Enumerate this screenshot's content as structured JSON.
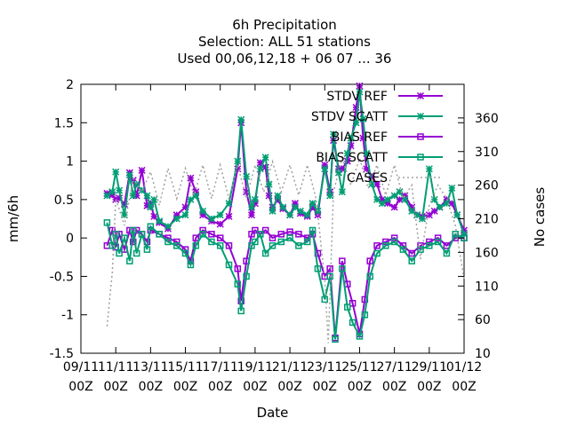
{
  "chart_data": {
    "type": "line",
    "title_lines": [
      "6h Precipitation",
      "Selection: ALL      51 stations",
      "Used  00,06,12,18 + 06 07 ... 36"
    ],
    "xlabel": "Date",
    "ylabel": "mm/6h",
    "y2label": "No cases",
    "x_ticks": [
      {
        "day": 9,
        "label": [
          "09/11",
          "00Z"
        ]
      },
      {
        "day": 11,
        "label": [
          "11/11",
          "00Z"
        ]
      },
      {
        "day": 13,
        "label": [
          "13/11",
          "00Z"
        ]
      },
      {
        "day": 15,
        "label": [
          "15/11",
          "00Z"
        ]
      },
      {
        "day": 17,
        "label": [
          "17/11",
          "00Z"
        ]
      },
      {
        "day": 19,
        "label": [
          "19/11",
          "00Z"
        ]
      },
      {
        "day": 21,
        "label": [
          "21/11",
          "00Z"
        ]
      },
      {
        "day": 23,
        "label": [
          "23/11",
          "00Z"
        ]
      },
      {
        "day": 25,
        "label": [
          "25/11",
          "00Z"
        ]
      },
      {
        "day": 27,
        "label": [
          "27/11",
          "00Z"
        ]
      },
      {
        "day": 29,
        "label": [
          "29/11",
          "00Z"
        ]
      },
      {
        "day": 31,
        "label": [
          "01/12",
          "00Z"
        ]
      }
    ],
    "xlim": [
      9,
      31
    ],
    "ylim": [
      -1.5,
      2
    ],
    "y_ticks": [
      -1.5,
      -1,
      -0.5,
      0,
      0.5,
      1,
      1.5,
      2
    ],
    "y2lim": [
      10,
      410
    ],
    "y2_ticks": [
      10,
      60,
      110,
      160,
      210,
      260,
      310,
      360
    ],
    "legend_position": "top-right",
    "series": [
      {
        "name": "STDV REF",
        "color": "#9400d3",
        "marker": "star",
        "axis": "y1",
        "points": [
          [
            10.5,
            0.58
          ],
          [
            10.8,
            0.56
          ],
          [
            11.0,
            0.5
          ],
          [
            11.2,
            0.52
          ],
          [
            11.5,
            0.44
          ],
          [
            11.8,
            0.85
          ],
          [
            12.0,
            0.75
          ],
          [
            12.2,
            0.55
          ],
          [
            12.5,
            0.88
          ],
          [
            12.8,
            0.42
          ],
          [
            13.0,
            0.45
          ],
          [
            13.2,
            0.28
          ],
          [
            13.5,
            0.2
          ],
          [
            14.0,
            0.12
          ],
          [
            14.5,
            0.3
          ],
          [
            15.0,
            0.4
          ],
          [
            15.3,
            0.78
          ],
          [
            15.6,
            0.6
          ],
          [
            16.0,
            0.3
          ],
          [
            16.5,
            0.22
          ],
          [
            17.0,
            0.18
          ],
          [
            17.5,
            0.28
          ],
          [
            18.0,
            0.9
          ],
          [
            18.2,
            1.5
          ],
          [
            18.5,
            0.6
          ],
          [
            18.8,
            0.3
          ],
          [
            19.0,
            0.45
          ],
          [
            19.3,
            0.98
          ],
          [
            19.6,
            0.92
          ],
          [
            19.8,
            0.55
          ],
          [
            20.0,
            0.4
          ],
          [
            20.3,
            0.5
          ],
          [
            20.6,
            0.38
          ],
          [
            21.0,
            0.3
          ],
          [
            21.3,
            0.45
          ],
          [
            21.6,
            0.32
          ],
          [
            22.0,
            0.28
          ],
          [
            22.3,
            0.4
          ],
          [
            22.6,
            0.3
          ],
          [
            23.0,
            0.95
          ],
          [
            23.3,
            0.6
          ],
          [
            23.5,
            1.27
          ],
          [
            23.8,
            0.9
          ],
          [
            24.0,
            0.9
          ],
          [
            24.3,
            1.0
          ],
          [
            24.5,
            1.2
          ],
          [
            24.8,
            1.7
          ],
          [
            25.0,
            1.98
          ],
          [
            25.2,
            1.3
          ],
          [
            25.4,
            0.9
          ],
          [
            25.7,
            0.8
          ],
          [
            26.0,
            0.7
          ],
          [
            26.3,
            0.5
          ],
          [
            26.6,
            0.45
          ],
          [
            27.0,
            0.4
          ],
          [
            27.3,
            0.5
          ],
          [
            27.6,
            0.55
          ],
          [
            28.0,
            0.4
          ],
          [
            28.3,
            0.3
          ],
          [
            28.6,
            0.28
          ],
          [
            29.0,
            0.3
          ],
          [
            29.3,
            0.35
          ],
          [
            29.6,
            0.4
          ],
          [
            30.0,
            0.5
          ],
          [
            30.3,
            0.45
          ],
          [
            30.6,
            0.3
          ],
          [
            31.0,
            0.1
          ]
        ]
      },
      {
        "name": "STDV SCATT",
        "color": "#009e73",
        "marker": "star",
        "axis": "y1",
        "points": [
          [
            10.5,
            0.55
          ],
          [
            10.8,
            0.6
          ],
          [
            11.0,
            0.86
          ],
          [
            11.2,
            0.62
          ],
          [
            11.5,
            0.3
          ],
          [
            11.8,
            0.82
          ],
          [
            12.0,
            0.55
          ],
          [
            12.2,
            0.7
          ],
          [
            12.5,
            0.62
          ],
          [
            12.8,
            0.55
          ],
          [
            13.0,
            0.4
          ],
          [
            13.2,
            0.5
          ],
          [
            13.5,
            0.22
          ],
          [
            14.0,
            0.15
          ],
          [
            14.5,
            0.25
          ],
          [
            15.0,
            0.3
          ],
          [
            15.3,
            0.5
          ],
          [
            15.6,
            0.55
          ],
          [
            16.0,
            0.35
          ],
          [
            16.5,
            0.25
          ],
          [
            17.0,
            0.3
          ],
          [
            17.5,
            0.45
          ],
          [
            18.0,
            1.0
          ],
          [
            18.2,
            1.54
          ],
          [
            18.5,
            0.8
          ],
          [
            18.8,
            0.4
          ],
          [
            19.0,
            0.5
          ],
          [
            19.3,
            0.9
          ],
          [
            19.6,
            1.05
          ],
          [
            19.8,
            0.7
          ],
          [
            20.0,
            0.35
          ],
          [
            20.3,
            0.55
          ],
          [
            20.6,
            0.4
          ],
          [
            21.0,
            0.3
          ],
          [
            21.3,
            0.4
          ],
          [
            21.6,
            0.35
          ],
          [
            22.0,
            0.3
          ],
          [
            22.3,
            0.45
          ],
          [
            22.6,
            0.35
          ],
          [
            23.0,
            0.9
          ],
          [
            23.3,
            0.55
          ],
          [
            23.5,
            1.35
          ],
          [
            23.8,
            0.85
          ],
          [
            24.0,
            0.6
          ],
          [
            24.3,
            1.1
          ],
          [
            24.5,
            1.3
          ],
          [
            24.8,
            1.5
          ],
          [
            25.0,
            1.9
          ],
          [
            25.2,
            1.55
          ],
          [
            25.4,
            1.1
          ],
          [
            25.7,
            0.7
          ],
          [
            26.0,
            0.5
          ],
          [
            26.3,
            0.45
          ],
          [
            26.6,
            0.5
          ],
          [
            27.0,
            0.55
          ],
          [
            27.3,
            0.6
          ],
          [
            27.6,
            0.5
          ],
          [
            28.0,
            0.35
          ],
          [
            28.3,
            0.3
          ],
          [
            28.6,
            0.25
          ],
          [
            29.0,
            0.9
          ],
          [
            29.3,
            0.5
          ],
          [
            29.6,
            0.4
          ],
          [
            30.0,
            0.45
          ],
          [
            30.3,
            0.65
          ],
          [
            30.6,
            0.3
          ],
          [
            31.0,
            0.05
          ]
        ]
      },
      {
        "name": "BIAS REF",
        "color": "#9400d3",
        "marker": "square",
        "axis": "y1",
        "points": [
          [
            10.5,
            -0.1
          ],
          [
            10.8,
            0.1
          ],
          [
            11.0,
            -0.12
          ],
          [
            11.2,
            0.05
          ],
          [
            11.5,
            -0.15
          ],
          [
            11.8,
            0.1
          ],
          [
            12.0,
            -0.05
          ],
          [
            12.2,
            0.1
          ],
          [
            12.5,
            0.05
          ],
          [
            12.8,
            -0.05
          ],
          [
            13.0,
            0.1
          ],
          [
            13.5,
            0.05
          ],
          [
            14.0,
            0.0
          ],
          [
            14.5,
            -0.05
          ],
          [
            15.0,
            -0.15
          ],
          [
            15.3,
            -0.3
          ],
          [
            15.6,
            0.0
          ],
          [
            16.0,
            0.1
          ],
          [
            16.5,
            0.05
          ],
          [
            17.0,
            0.0
          ],
          [
            17.5,
            -0.1
          ],
          [
            18.0,
            -0.4
          ],
          [
            18.2,
            -0.82
          ],
          [
            18.5,
            -0.3
          ],
          [
            18.8,
            0.05
          ],
          [
            19.0,
            0.1
          ],
          [
            19.3,
            0.05
          ],
          [
            19.6,
            0.1
          ],
          [
            20.0,
            0.0
          ],
          [
            20.5,
            0.05
          ],
          [
            21.0,
            0.08
          ],
          [
            21.5,
            0.05
          ],
          [
            22.0,
            0.0
          ],
          [
            22.3,
            0.05
          ],
          [
            22.6,
            -0.2
          ],
          [
            23.0,
            -0.5
          ],
          [
            23.3,
            -0.4
          ],
          [
            23.6,
            -1.3
          ],
          [
            24.0,
            -0.3
          ],
          [
            24.3,
            -0.6
          ],
          [
            24.6,
            -0.85
          ],
          [
            25.0,
            -1.25
          ],
          [
            25.3,
            -0.8
          ],
          [
            25.6,
            -0.3
          ],
          [
            26.0,
            -0.1
          ],
          [
            26.5,
            -0.05
          ],
          [
            27.0,
            0.0
          ],
          [
            27.5,
            -0.1
          ],
          [
            28.0,
            -0.2
          ],
          [
            28.5,
            -0.1
          ],
          [
            29.0,
            -0.05
          ],
          [
            29.5,
            0.0
          ],
          [
            30.0,
            -0.1
          ],
          [
            30.5,
            0.0
          ],
          [
            31.0,
            0.0
          ]
        ]
      },
      {
        "name": "BIAS SCATT",
        "color": "#009e73",
        "marker": "square",
        "axis": "y1",
        "points": [
          [
            10.5,
            0.2
          ],
          [
            10.8,
            -0.1
          ],
          [
            11.0,
            0.05
          ],
          [
            11.2,
            -0.2
          ],
          [
            11.5,
            0.0
          ],
          [
            11.8,
            -0.3
          ],
          [
            12.0,
            0.1
          ],
          [
            12.2,
            -0.2
          ],
          [
            12.5,
            0.05
          ],
          [
            12.8,
            -0.15
          ],
          [
            13.0,
            0.15
          ],
          [
            13.5,
            0.05
          ],
          [
            14.0,
            -0.05
          ],
          [
            14.5,
            -0.1
          ],
          [
            15.0,
            -0.2
          ],
          [
            15.3,
            -0.35
          ],
          [
            15.6,
            -0.1
          ],
          [
            16.0,
            0.05
          ],
          [
            16.5,
            -0.05
          ],
          [
            17.0,
            -0.1
          ],
          [
            17.5,
            -0.35
          ],
          [
            18.0,
            -0.6
          ],
          [
            18.2,
            -0.95
          ],
          [
            18.5,
            -0.5
          ],
          [
            18.8,
            -0.1
          ],
          [
            19.0,
            -0.05
          ],
          [
            19.3,
            0.05
          ],
          [
            19.6,
            -0.2
          ],
          [
            20.0,
            -0.1
          ],
          [
            20.5,
            -0.05
          ],
          [
            21.0,
            0.0
          ],
          [
            21.5,
            -0.1
          ],
          [
            22.0,
            -0.05
          ],
          [
            22.3,
            0.1
          ],
          [
            22.6,
            -0.4
          ],
          [
            23.0,
            -0.8
          ],
          [
            23.3,
            -0.5
          ],
          [
            23.6,
            -1.32
          ],
          [
            24.0,
            -0.4
          ],
          [
            24.3,
            -0.9
          ],
          [
            24.6,
            -1.1
          ],
          [
            25.0,
            -1.28
          ],
          [
            25.3,
            -1.0
          ],
          [
            25.6,
            -0.5
          ],
          [
            26.0,
            -0.2
          ],
          [
            26.5,
            -0.1
          ],
          [
            27.0,
            -0.05
          ],
          [
            27.5,
            -0.15
          ],
          [
            28.0,
            -0.3
          ],
          [
            28.5,
            -0.15
          ],
          [
            29.0,
            -0.1
          ],
          [
            29.5,
            -0.05
          ],
          [
            30.0,
            -0.2
          ],
          [
            30.5,
            0.05
          ],
          [
            31.0,
            0.0
          ]
        ]
      },
      {
        "name": "CASES",
        "color": "#a0a0a0",
        "marker": "none",
        "dash": true,
        "axis": "y2",
        "points": [
          [
            10.5,
            50
          ],
          [
            10.8,
            130
          ],
          [
            11.0,
            240
          ],
          [
            11.5,
            200
          ],
          [
            12.0,
            270
          ],
          [
            12.5,
            250
          ],
          [
            13.0,
            280
          ],
          [
            13.5,
            230
          ],
          [
            14.0,
            285
          ],
          [
            14.5,
            240
          ],
          [
            15.0,
            285
          ],
          [
            15.5,
            245
          ],
          [
            16.0,
            290
          ],
          [
            16.5,
            240
          ],
          [
            17.0,
            290
          ],
          [
            17.5,
            240
          ],
          [
            18.0,
            290
          ],
          [
            18.5,
            240
          ],
          [
            19.0,
            290
          ],
          [
            19.5,
            250
          ],
          [
            20.0,
            295
          ],
          [
            20.5,
            250
          ],
          [
            21.0,
            290
          ],
          [
            21.5,
            245
          ],
          [
            22.0,
            290
          ],
          [
            22.5,
            240
          ],
          [
            23.0,
            120
          ],
          [
            23.2,
            25
          ],
          [
            23.5,
            250
          ],
          [
            24.0,
            300
          ],
          [
            24.5,
            260
          ],
          [
            25.0,
            300
          ],
          [
            25.5,
            255
          ],
          [
            26.0,
            290
          ],
          [
            26.5,
            245
          ],
          [
            27.0,
            290
          ],
          [
            27.5,
            240
          ],
          [
            28.0,
            260
          ],
          [
            28.5,
            150
          ],
          [
            29.0,
            230
          ],
          [
            29.5,
            260
          ],
          [
            30.0,
            240
          ],
          [
            30.5,
            200
          ],
          [
            31.0,
            120
          ]
        ]
      }
    ]
  }
}
